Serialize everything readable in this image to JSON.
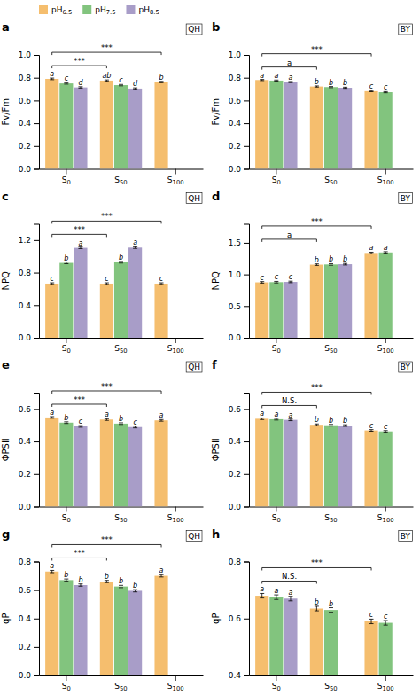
{
  "chart_data": [
    {
      "type": "bar",
      "title": "a",
      "subtitle": "QH",
      "ylabel": "Fv/Fm",
      "ylim": [
        0.0,
        1.0
      ],
      "yticks": [
        {
          "value": 0.0,
          "label": "0.0"
        },
        0.2,
        0.4,
        0.6,
        0.8,
        {
          "value": 1.0,
          "label": "1.0"
        }
      ],
      "categories": [
        "S0",
        "S50",
        "S100"
      ],
      "series": [
        {
          "name": "pH6.5",
          "color": "#F5BE6E",
          "values": [
            0.79,
            0.775,
            0.762
          ],
          "errors": [
            0.007,
            0.006,
            0.006
          ],
          "letters": [
            "a",
            "ab",
            "b"
          ]
        },
        {
          "name": "pH7.5",
          "color": "#82C47E",
          "values": [
            0.75,
            0.735,
            null
          ],
          "errors": [
            0.006,
            0.006,
            null
          ],
          "letters": [
            "c",
            "c",
            null
          ]
        },
        {
          "name": "pH8.5",
          "color": "#A89DC8",
          "values": [
            0.715,
            0.705,
            null
          ],
          "errors": [
            0.006,
            0.006,
            null
          ],
          "letters": [
            "d",
            "d",
            null
          ]
        }
      ],
      "annotations": [
        {
          "text": "***",
          "x": [
            "S0",
            "S50"
          ]
        },
        {
          "text": "***",
          "x": [
            "S0",
            "S100"
          ]
        }
      ],
      "legend": "upper left"
    },
    {
      "type": "bar",
      "title": "b",
      "subtitle": "BY",
      "ylabel": "Fv/Fm",
      "ylim": [
        0.0,
        1.0
      ],
      "yticks": [
        {
          "value": 0.0,
          "label": "0.0"
        },
        0.2,
        0.4,
        0.6,
        0.8,
        {
          "value": 1.0,
          "label": "1.0"
        }
      ],
      "categories": [
        "S0",
        "S50",
        "S100"
      ],
      "series": [
        {
          "color": "#F5BE6E",
          "values": [
            0.78,
            0.723,
            0.682
          ],
          "errors": [
            0.005,
            0.005,
            0.005
          ],
          "letters": [
            "a",
            "b",
            "c"
          ]
        },
        {
          "color": "#82C47E",
          "values": [
            0.775,
            0.718,
            0.673
          ],
          "errors": [
            0.005,
            0.005,
            0.005
          ],
          "letters": [
            "a",
            "b",
            "c"
          ]
        },
        {
          "color": "#A89DC8",
          "values": [
            0.762,
            0.712,
            null
          ],
          "errors": [
            0.005,
            0.005,
            null
          ],
          "letters": [
            "a",
            "b",
            null
          ]
        }
      ],
      "annotations": [
        {
          "text": "a",
          "x": [
            "S0",
            "S50"
          ]
        },
        {
          "text": "***",
          "x": [
            "S0",
            "S100"
          ]
        }
      ]
    },
    {
      "type": "bar",
      "title": "c",
      "subtitle": "QH",
      "ylabel": "NPQ",
      "ylim": [
        0.0,
        1.4
      ],
      "yticks": [
        {
          "value": 0.0,
          "label": "0.0"
        },
        0.4,
        0.8,
        1.2
      ],
      "categories": [
        "S0",
        "S50",
        "S100"
      ],
      "series": [
        {
          "color": "#F5BE6E",
          "values": [
            0.665,
            0.665,
            0.665
          ],
          "errors": [
            0.01,
            0.01,
            0.01
          ],
          "letters": [
            "c",
            "c",
            "c"
          ]
        },
        {
          "color": "#82C47E",
          "values": [
            0.92,
            0.928,
            null
          ],
          "errors": [
            0.01,
            0.01,
            null
          ],
          "letters": [
            "b",
            "b",
            null
          ]
        },
        {
          "color": "#A89DC8",
          "values": [
            1.105,
            1.108,
            null
          ],
          "errors": [
            0.01,
            0.01,
            null
          ],
          "letters": [
            "a",
            "a",
            null
          ]
        }
      ],
      "annotations": [
        {
          "text": "***",
          "x": [
            "S0",
            "S50"
          ]
        },
        {
          "text": "***",
          "x": [
            "S0",
            "S100"
          ]
        }
      ]
    },
    {
      "type": "bar",
      "title": "d",
      "subtitle": "BY",
      "ylabel": "NPQ",
      "ylim": [
        0.0,
        1.8
      ],
      "yticks": [
        {
          "value": 0.0,
          "label": "0.0"
        },
        0.5,
        {
          "value": 1.0,
          "label": "1.0"
        },
        1.5
      ],
      "categories": [
        "S0",
        "S50",
        "S100"
      ],
      "series": [
        {
          "color": "#F5BE6E",
          "values": [
            0.875,
            1.155,
            1.34
          ],
          "errors": [
            0.012,
            0.012,
            0.012
          ],
          "letters": [
            "c",
            "b",
            "a"
          ]
        },
        {
          "color": "#82C47E",
          "values": [
            0.878,
            1.158,
            1.348
          ],
          "errors": [
            0.012,
            0.012,
            0.012
          ],
          "letters": [
            "c",
            "b",
            "a"
          ]
        },
        {
          "color": "#A89DC8",
          "values": [
            0.882,
            1.162,
            null
          ],
          "errors": [
            0.012,
            0.012,
            null
          ],
          "letters": [
            "c",
            "b",
            null
          ]
        }
      ],
      "annotations": [
        {
          "text": "a",
          "x": [
            "S0",
            "S50"
          ]
        },
        {
          "text": "***",
          "x": [
            "S0",
            "S100"
          ]
        }
      ]
    },
    {
      "type": "bar",
      "title": "e",
      "subtitle": "QH",
      "ylabel": "ΦPSII",
      "ylim": [
        0.0,
        0.7
      ],
      "yticks": [
        {
          "value": 0.0,
          "label": "0.0"
        },
        0.2,
        0.4,
        0.6
      ],
      "categories": [
        "S0",
        "S50",
        "S100"
      ],
      "series": [
        {
          "color": "#F5BE6E",
          "values": [
            0.548,
            0.535,
            0.53
          ],
          "errors": [
            0.005,
            0.005,
            0.005
          ],
          "letters": [
            "a",
            "a",
            "a"
          ]
        },
        {
          "color": "#82C47E",
          "values": [
            0.516,
            0.51,
            null
          ],
          "errors": [
            0.005,
            0.005,
            null
          ],
          "letters": [
            "b",
            "b",
            null
          ]
        },
        {
          "color": "#A89DC8",
          "values": [
            0.493,
            0.489,
            null
          ],
          "errors": [
            0.005,
            0.005,
            null
          ],
          "letters": [
            "c",
            "c",
            null
          ]
        }
      ],
      "annotations": [
        {
          "text": "***",
          "x": [
            "S0",
            "S50"
          ]
        },
        {
          "text": "***",
          "x": [
            "S0",
            "S100"
          ]
        }
      ]
    },
    {
      "type": "bar",
      "title": "f",
      "subtitle": "BY",
      "ylabel": "ΦPSII",
      "ylim": [
        0.0,
        0.7
      ],
      "yticks": [
        {
          "value": 0.0,
          "label": "0.0"
        },
        0.2,
        0.4,
        0.6
      ],
      "categories": [
        "S0",
        "S50",
        "S100"
      ],
      "series": [
        {
          "color": "#F5BE6E",
          "values": [
            0.54,
            0.503,
            0.468
          ],
          "errors": [
            0.005,
            0.005,
            0.005
          ],
          "letters": [
            "a",
            "b",
            "c"
          ]
        },
        {
          "color": "#82C47E",
          "values": [
            0.537,
            0.5,
            0.462
          ],
          "errors": [
            0.005,
            0.005,
            0.005
          ],
          "letters": [
            "a",
            "b",
            "c"
          ]
        },
        {
          "color": "#A89DC8",
          "values": [
            0.533,
            0.498,
            null
          ],
          "errors": [
            0.005,
            0.005,
            null
          ],
          "letters": [
            "a",
            "b",
            null
          ]
        }
      ],
      "annotations": [
        {
          "text": "N.S.",
          "x": [
            "S0",
            "S50"
          ]
        },
        {
          "text": "***",
          "x": [
            "S0",
            "S100"
          ]
        }
      ]
    },
    {
      "type": "bar",
      "title": "g",
      "subtitle": "QH",
      "ylabel": "qP",
      "ylim": [
        0.0,
        0.8
      ],
      "yticks": [
        {
          "value": 0.0,
          "label": "0.0"
        },
        0.2,
        0.4,
        0.6,
        0.8
      ],
      "categories": [
        "S0",
        "S50",
        "S100"
      ],
      "series": [
        {
          "color": "#F5BE6E",
          "values": [
            0.73,
            0.66,
            0.7
          ],
          "errors": [
            0.008,
            0.008,
            0.008
          ],
          "letters": [
            "a",
            "b",
            "a"
          ]
        },
        {
          "color": "#82C47E",
          "values": [
            0.67,
            0.625,
            null
          ],
          "errors": [
            0.008,
            0.008,
            null
          ],
          "letters": [
            "b",
            "b",
            null
          ]
        },
        {
          "color": "#A89DC8",
          "values": [
            0.635,
            0.595,
            null
          ],
          "errors": [
            0.008,
            0.008,
            null
          ],
          "letters": [
            "b",
            "b",
            null
          ]
        }
      ],
      "annotations": [
        {
          "text": "***",
          "x": [
            "S0",
            "S50"
          ]
        },
        {
          "text": "***",
          "x": [
            "S0",
            "S100"
          ]
        }
      ]
    },
    {
      "type": "bar",
      "title": "h",
      "subtitle": "BY",
      "ylabel": "qP",
      "ylim": [
        0.4,
        0.8
      ],
      "yticks": [
        0.4,
        0.6,
        0.8
      ],
      "categories": [
        "S0",
        "S50",
        "S100"
      ],
      "series": [
        {
          "color": "#F5BE6E",
          "values": [
            0.68,
            0.635,
            0.59
          ],
          "errors": [
            0.008,
            0.008,
            0.008
          ],
          "letters": [
            "a",
            "b",
            "c"
          ]
        },
        {
          "color": "#82C47E",
          "values": [
            0.675,
            0.63,
            0.585
          ],
          "errors": [
            0.008,
            0.008,
            0.008
          ],
          "letters": [
            "a",
            "b",
            "c"
          ]
        },
        {
          "color": "#A89DC8",
          "values": [
            0.67,
            null,
            null
          ],
          "errors": [
            0.008,
            null,
            null
          ],
          "letters": [
            "a",
            null,
            null
          ]
        }
      ],
      "annotations": [
        {
          "text": "N.S.",
          "x": [
            "S0",
            "S50"
          ]
        },
        {
          "text": "***",
          "x": [
            "S0",
            "S100"
          ]
        }
      ]
    }
  ]
}
